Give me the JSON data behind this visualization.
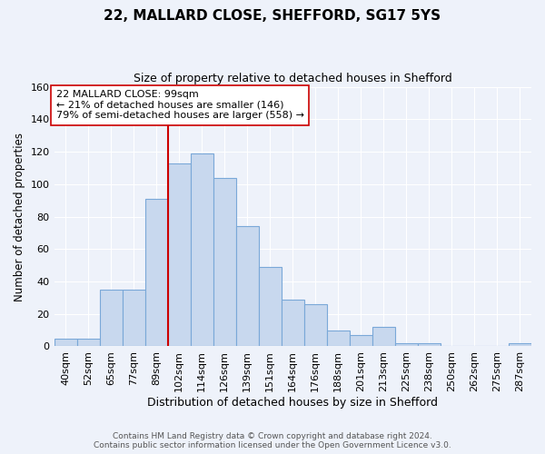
{
  "title1": "22, MALLARD CLOSE, SHEFFORD, SG17 5YS",
  "title2": "Size of property relative to detached houses in Shefford",
  "xlabel": "Distribution of detached houses by size in Shefford",
  "ylabel": "Number of detached properties",
  "bin_labels": [
    "40sqm",
    "52sqm",
    "65sqm",
    "77sqm",
    "89sqm",
    "102sqm",
    "114sqm",
    "126sqm",
    "139sqm",
    "151sqm",
    "164sqm",
    "176sqm",
    "188sqm",
    "201sqm",
    "213sqm",
    "225sqm",
    "238sqm",
    "250sqm",
    "262sqm",
    "275sqm",
    "287sqm"
  ],
  "bar_heights": [
    5,
    5,
    35,
    35,
    91,
    113,
    119,
    104,
    74,
    49,
    29,
    26,
    10,
    7,
    12,
    2,
    2,
    0,
    0,
    0,
    2
  ],
  "bar_color": "#c8d8ee",
  "bar_edge_color": "#7aa8d8",
  "vline_x_index": 4,
  "vline_color": "#cc0000",
  "annotation_text": "22 MALLARD CLOSE: 99sqm\n← 21% of detached houses are smaller (146)\n79% of semi-detached houses are larger (558) →",
  "annotation_box_color": "#ffffff",
  "annotation_box_edge": "#cc0000",
  "ylim": [
    0,
    160
  ],
  "yticks": [
    0,
    20,
    40,
    60,
    80,
    100,
    120,
    140,
    160
  ],
  "footer1": "Contains HM Land Registry data © Crown copyright and database right 2024.",
  "footer2": "Contains public sector information licensed under the Open Government Licence v3.0.",
  "bg_color": "#eef2fa",
  "grid_color": "#ffffff",
  "title1_fontsize": 11,
  "title2_fontsize": 9
}
